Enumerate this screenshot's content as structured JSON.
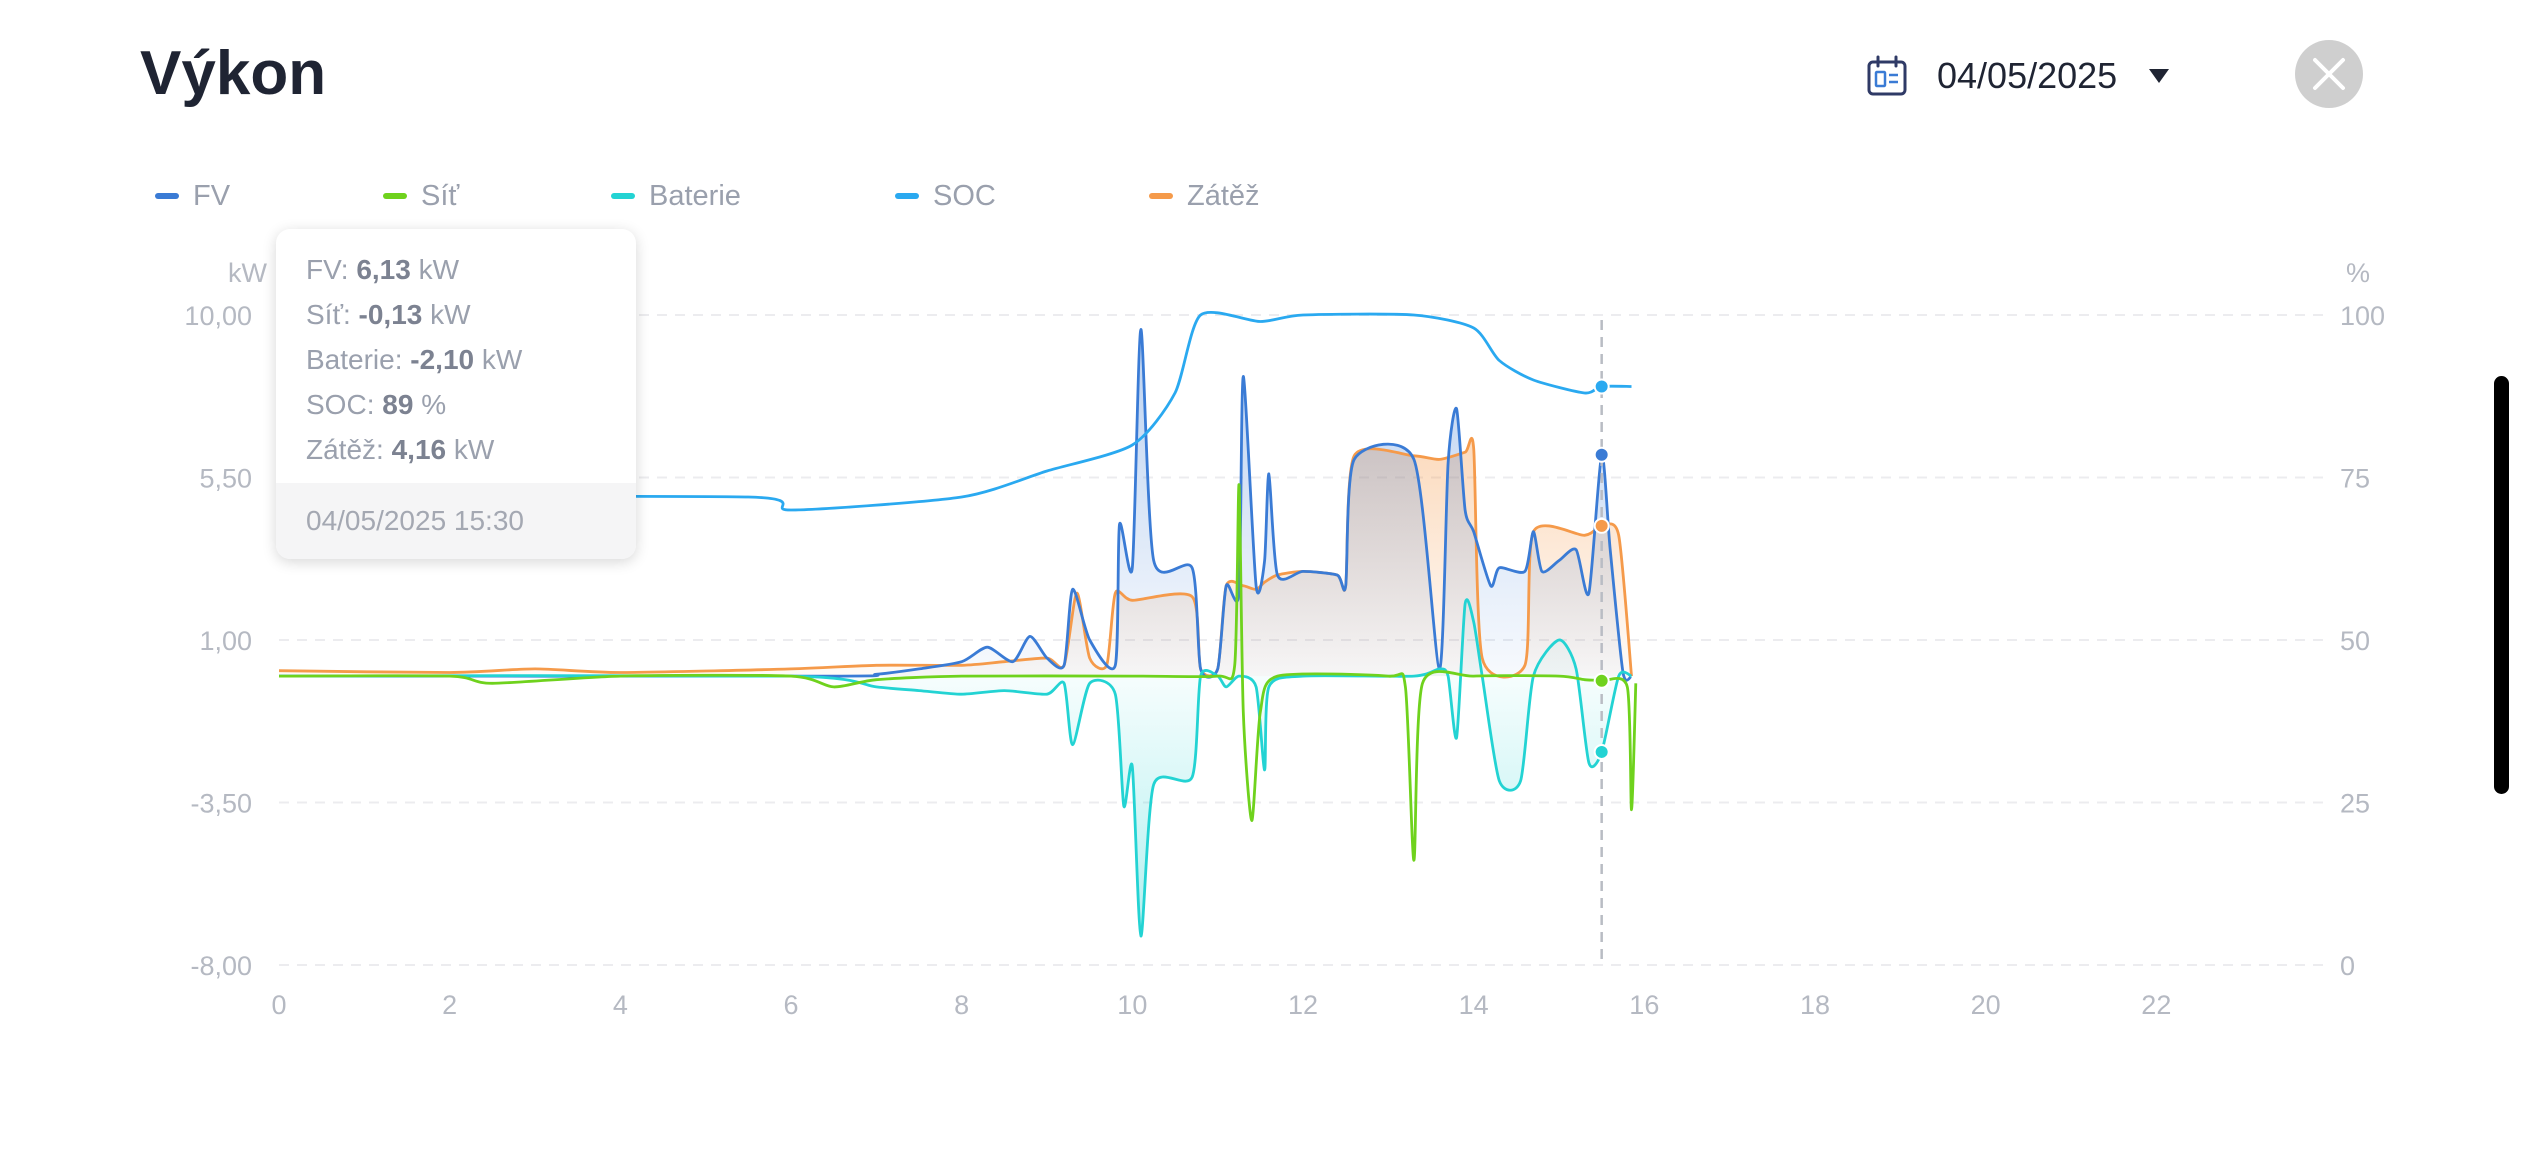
{
  "header": {
    "title": "Výkon",
    "date": "04/05/2025",
    "calendar_icon": "calendar-icon",
    "dropdown_icon": "caret-down-icon",
    "close_icon": "close-icon"
  },
  "legend": [
    {
      "label": "FV",
      "color": "#3a7bd5"
    },
    {
      "label": "Síť",
      "color": "#6fd21d"
    },
    {
      "label": "Baterie",
      "color": "#23d3d3"
    },
    {
      "label": "SOC",
      "color": "#2aa9f0"
    },
    {
      "label": "Zátěž",
      "color": "#f59a4a"
    }
  ],
  "tooltip": {
    "rows": [
      {
        "name": "FV",
        "value": "6,13",
        "unit": "kW"
      },
      {
        "name": "Síť",
        "value": "-0,13",
        "unit": "kW"
      },
      {
        "name": "Baterie",
        "value": "-2,10",
        "unit": "kW"
      },
      {
        "name": "SOC",
        "value": "89",
        "unit": "%"
      },
      {
        "name": "Zátěž",
        "value": "4,16",
        "unit": "kW"
      }
    ],
    "timestamp": "04/05/2025 15:30"
  },
  "chart_data": {
    "type": "line",
    "y_left_unit": "kW",
    "y_right_unit": "%",
    "ylim_left": [
      -8,
      10
    ],
    "ylim_right": [
      0,
      100
    ],
    "xlim": [
      0,
      24
    ],
    "x_ticks": [
      "0",
      "2",
      "4",
      "6",
      "8",
      "10",
      "12",
      "14",
      "16",
      "18",
      "20",
      "22"
    ],
    "y_left_ticks": [
      "10,00",
      "5,50",
      "1,00",
      "-3,50",
      "-8,00"
    ],
    "y_right_ticks": [
      "100",
      "75",
      "50",
      "25",
      "0"
    ],
    "crosshair_x": 15.5,
    "series": [
      {
        "name": "FV",
        "color": "#3a7bd5",
        "axis": "left",
        "fill": true,
        "points": [
          [
            0,
            0
          ],
          [
            6.5,
            0
          ],
          [
            7,
            0.05
          ],
          [
            7.5,
            0.2
          ],
          [
            8,
            0.4
          ],
          [
            8.3,
            0.8
          ],
          [
            8.6,
            0.4
          ],
          [
            8.8,
            1.1
          ],
          [
            9,
            0.5
          ],
          [
            9.2,
            0.3
          ],
          [
            9.3,
            2.4
          ],
          [
            9.5,
            1.0
          ],
          [
            9.8,
            0.3
          ],
          [
            9.85,
            4.2
          ],
          [
            10,
            3.0
          ],
          [
            10.1,
            9.6
          ],
          [
            10.25,
            3.2
          ],
          [
            10.7,
            3.0
          ],
          [
            10.8,
            0.2
          ],
          [
            11,
            0.2
          ],
          [
            11.1,
            2.5
          ],
          [
            11.25,
            2.3
          ],
          [
            11.3,
            8.3
          ],
          [
            11.45,
            2.5
          ],
          [
            11.55,
            3.2
          ],
          [
            11.6,
            5.6
          ],
          [
            11.7,
            2.8
          ],
          [
            12,
            2.9
          ],
          [
            12.4,
            2.8
          ],
          [
            12.5,
            2.5
          ],
          [
            12.6,
            6.0
          ],
          [
            13.3,
            6.0
          ],
          [
            13.6,
            0.2
          ],
          [
            13.7,
            5.9
          ],
          [
            13.8,
            7.4
          ],
          [
            13.9,
            4.6
          ],
          [
            14,
            4.0
          ],
          [
            14.2,
            2.5
          ],
          [
            14.3,
            3.0
          ],
          [
            14.6,
            2.9
          ],
          [
            14.7,
            4.0
          ],
          [
            14.8,
            2.9
          ],
          [
            15,
            3.2
          ],
          [
            15.2,
            3.5
          ],
          [
            15.35,
            2.3
          ],
          [
            15.5,
            6.13
          ],
          [
            15.6,
            3.5
          ],
          [
            15.75,
            0.1
          ],
          [
            15.85,
            0
          ]
        ]
      },
      {
        "name": "Síť",
        "color": "#6fd21d",
        "axis": "left",
        "fill": false,
        "points": [
          [
            0,
            0
          ],
          [
            2,
            0
          ],
          [
            2.5,
            -0.2
          ],
          [
            4,
            0
          ],
          [
            6,
            0
          ],
          [
            6.5,
            -0.3
          ],
          [
            7,
            -0.1
          ],
          [
            8,
            0
          ],
          [
            10,
            0
          ],
          [
            11,
            0
          ],
          [
            11.2,
            0.3
          ],
          [
            11.25,
            5.3
          ],
          [
            11.3,
            -1
          ],
          [
            11.4,
            -4.0
          ],
          [
            11.5,
            -1.0
          ],
          [
            11.7,
            0
          ],
          [
            13,
            0
          ],
          [
            13.2,
            -0.3
          ],
          [
            13.3,
            -5.1
          ],
          [
            13.4,
            -0.2
          ],
          [
            14,
            0
          ],
          [
            15,
            0
          ],
          [
            15.3,
            -0.1
          ],
          [
            15.5,
            -0.13
          ],
          [
            15.8,
            -0.3
          ],
          [
            15.85,
            -3.7
          ],
          [
            15.9,
            -0.2
          ]
        ]
      },
      {
        "name": "Baterie",
        "color": "#23d3d3",
        "axis": "left",
        "fill": true,
        "points": [
          [
            0,
            0
          ],
          [
            6,
            0
          ],
          [
            7,
            -0.3
          ],
          [
            7.5,
            -0.4
          ],
          [
            8,
            -0.5
          ],
          [
            8.5,
            -0.4
          ],
          [
            9,
            -0.5
          ],
          [
            9.2,
            -0.2
          ],
          [
            9.3,
            -1.9
          ],
          [
            9.5,
            -0.2
          ],
          [
            9.8,
            -0.5
          ],
          [
            9.9,
            -3.6
          ],
          [
            10,
            -2.5
          ],
          [
            10.1,
            -7.2
          ],
          [
            10.25,
            -3.0
          ],
          [
            10.7,
            -2.8
          ],
          [
            10.8,
            0
          ],
          [
            11,
            0
          ],
          [
            11.1,
            -0.3
          ],
          [
            11.25,
            0
          ],
          [
            11.45,
            -0.3
          ],
          [
            11.55,
            -2.6
          ],
          [
            11.6,
            -0.3
          ],
          [
            12,
            0
          ],
          [
            13.3,
            0
          ],
          [
            13.6,
            0.2
          ],
          [
            13.7,
            0
          ],
          [
            13.8,
            -1.7
          ],
          [
            13.9,
            2.0
          ],
          [
            14,
            1.5
          ],
          [
            14.1,
            0
          ],
          [
            14.3,
            -2.9
          ],
          [
            14.55,
            -2.9
          ],
          [
            14.7,
            0
          ],
          [
            15.0,
            1.0
          ],
          [
            15.2,
            0.2
          ],
          [
            15.35,
            -2.4
          ],
          [
            15.5,
            -2.1
          ],
          [
            15.7,
            0
          ],
          [
            15.85,
            0
          ]
        ]
      },
      {
        "name": "SOC",
        "color": "#2aa9f0",
        "axis": "right",
        "fill": false,
        "points": [
          [
            0,
            72
          ],
          [
            5.5,
            72
          ],
          [
            6,
            70
          ],
          [
            8,
            72
          ],
          [
            9,
            76
          ],
          [
            10,
            80
          ],
          [
            10.5,
            88
          ],
          [
            10.8,
            100
          ],
          [
            11.5,
            99
          ],
          [
            12,
            100
          ],
          [
            13.3,
            100
          ],
          [
            14,
            98
          ],
          [
            14.3,
            93
          ],
          [
            14.7,
            90
          ],
          [
            15.3,
            88
          ],
          [
            15.5,
            89
          ],
          [
            15.85,
            89
          ]
        ]
      },
      {
        "name": "Zátěž",
        "color": "#f59a4a",
        "axis": "left",
        "fill": true,
        "points": [
          [
            0,
            0.15
          ],
          [
            2,
            0.1
          ],
          [
            3,
            0.2
          ],
          [
            4,
            0.1
          ],
          [
            6,
            0.2
          ],
          [
            7,
            0.3
          ],
          [
            8,
            0.3
          ],
          [
            8.5,
            0.4
          ],
          [
            9,
            0.5
          ],
          [
            9.2,
            0.3
          ],
          [
            9.35,
            2.3
          ],
          [
            9.5,
            0.5
          ],
          [
            9.7,
            0.3
          ],
          [
            9.8,
            2.3
          ],
          [
            10,
            2.1
          ],
          [
            10.7,
            2.2
          ],
          [
            10.8,
            0.2
          ],
          [
            11,
            0.2
          ],
          [
            11.1,
            2.5
          ],
          [
            11.3,
            2.5
          ],
          [
            11.45,
            2.4
          ],
          [
            11.55,
            2.6
          ],
          [
            11.7,
            2.8
          ],
          [
            12,
            2.9
          ],
          [
            12.4,
            2.8
          ],
          [
            12.5,
            2.5
          ],
          [
            12.6,
            6.1
          ],
          [
            13.3,
            6.1
          ],
          [
            13.6,
            6.0
          ],
          [
            13.9,
            6.2
          ],
          [
            14,
            6.3
          ],
          [
            14.1,
            0.5
          ],
          [
            14.6,
            0.3
          ],
          [
            14.7,
            4.0
          ],
          [
            15.3,
            3.9
          ],
          [
            15.5,
            4.16
          ],
          [
            15.7,
            3.9
          ],
          [
            15.85,
            0
          ]
        ]
      }
    ]
  }
}
